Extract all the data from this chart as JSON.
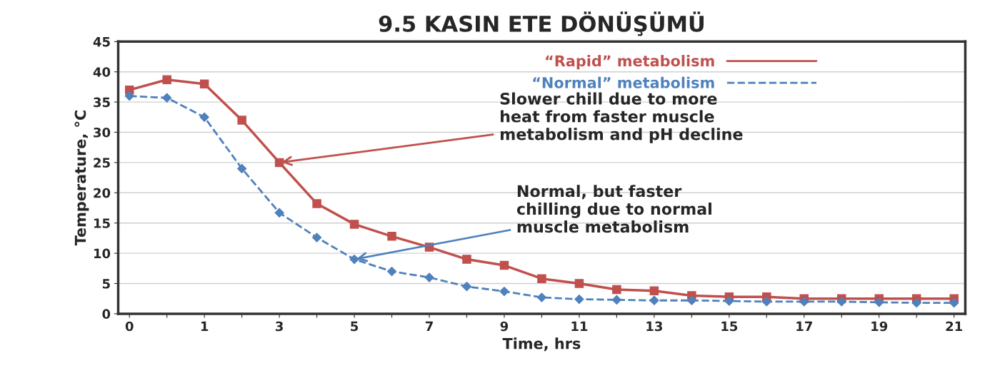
{
  "chart_data": {
    "type": "line",
    "title": "9.5 KASIN ETE DÖNÜŞÜMÜ",
    "xlabel": "Time, hrs",
    "ylabel": "Temperature, °C",
    "categories": [
      "0",
      null,
      "1",
      null,
      "3",
      null,
      "5",
      null,
      "7",
      null,
      "9",
      null,
      "11",
      null,
      "13",
      null,
      "15",
      null,
      "17",
      null,
      "19",
      null,
      "21"
    ],
    "series": [
      {
        "name": "“Rapid” metabolism",
        "color": "#c0504d",
        "marker": "square",
        "line_style": "solid",
        "values": [
          37,
          38.7,
          38,
          32,
          25,
          18.2,
          14.8,
          12.8,
          11,
          9,
          8,
          5.8,
          5,
          4,
          3.8,
          3,
          2.8,
          2.8,
          2.5,
          2.5,
          2.5,
          2.5,
          2.5
        ]
      },
      {
        "name": "“Normal” metabolism",
        "color": "#4f81bd",
        "marker": "diamond",
        "line_style": "dashed",
        "values": [
          36,
          35.7,
          32.5,
          24,
          16.7,
          12.6,
          9,
          7,
          6,
          4.5,
          3.7,
          2.7,
          2.4,
          2.3,
          2.2,
          2.2,
          2.1,
          2,
          2,
          2,
          1.9,
          1.8,
          1.8
        ]
      }
    ],
    "ylim": [
      0,
      45
    ],
    "yticks": [
      0,
      5,
      10,
      15,
      20,
      25,
      30,
      35,
      40,
      45
    ],
    "grid": "y",
    "legend": "top right",
    "annotations": [
      {
        "text": "Slower chill due to more\nheat from faster muscle\nmetabolism and pH decline",
        "x": "3",
        "y": 25
      },
      {
        "text": "Normal, but faster\nchilling due to normal\nmuscle metabolism",
        "x": "5",
        "y": 9
      }
    ]
  }
}
